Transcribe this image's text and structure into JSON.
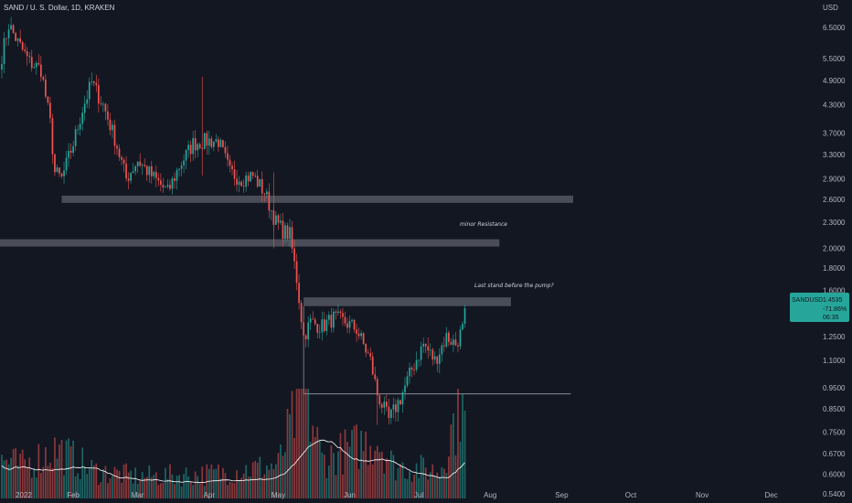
{
  "header": {
    "title": "SAND / U. S. Dollar, 1D, KRAKEN"
  },
  "price_axis": {
    "currency": "USD"
  },
  "price_badge": {
    "symbol": "SANDUSD",
    "price": "1.4535",
    "change": "-71.86%",
    "countdown": "06:35"
  },
  "annotations": {
    "minor_resistance": "minor Resistance",
    "last_stand": "Last stand before the pump?"
  },
  "colors": {
    "up": "#26a69a",
    "down": "#ef5350",
    "zone": "#5d606b",
    "background": "#131722",
    "ma_line": "#ffffff",
    "badge": "#26a69a"
  },
  "chart_data": {
    "type": "candlestick",
    "title": "SAND / U. S. Dollar, 1D, KRAKEN",
    "y_scale": "log",
    "y_ticks": [
      "6.5000",
      "5.5000",
      "4.9000",
      "4.3000",
      "3.7000",
      "3.3000",
      "2.9000",
      "2.6000",
      "2.3000",
      "2.0000",
      "1.8000",
      "1.6000",
      "1.2500",
      "1.1000",
      "0.9500",
      "0.8500",
      "0.7500",
      "0.6700",
      "0.6000",
      "0.5400"
    ],
    "x_ticks": [
      "2022",
      "Feb",
      "Mar",
      "Apr",
      "May",
      "Jun",
      "Jul",
      "Aug",
      "Sep",
      "Oct",
      "Nov",
      "Dec"
    ],
    "ohlc_anchors": [
      {
        "date": "2022-01-01",
        "close": 5.6
      },
      {
        "date": "2022-01-04",
        "close": 6.6
      },
      {
        "date": "2022-01-08",
        "close": 6.0
      },
      {
        "date": "2022-01-13",
        "close": 5.4
      },
      {
        "date": "2022-01-18",
        "close": 5.2
      },
      {
        "date": "2022-01-22",
        "close": 3.9
      },
      {
        "date": "2022-01-24",
        "close": 3.0
      },
      {
        "date": "2022-01-27",
        "close": 2.9
      },
      {
        "date": "2022-02-01",
        "close": 3.5
      },
      {
        "date": "2022-02-05",
        "close": 4.2
      },
      {
        "date": "2022-02-09",
        "close": 4.85
      },
      {
        "date": "2022-02-14",
        "close": 4.3
      },
      {
        "date": "2022-02-19",
        "close": 3.6
      },
      {
        "date": "2022-02-24",
        "close": 2.9
      },
      {
        "date": "2022-03-01",
        "close": 3.2
      },
      {
        "date": "2022-03-07",
        "close": 2.95
      },
      {
        "date": "2022-03-14",
        "close": 2.7
      },
      {
        "date": "2022-03-19",
        "close": 3.1
      },
      {
        "date": "2022-03-25",
        "close": 3.5
      },
      {
        "date": "2022-03-31",
        "close": 3.55
      },
      {
        "date": "2022-04-05",
        "close": 3.55
      },
      {
        "date": "2022-04-10",
        "close": 3.0
      },
      {
        "date": "2022-04-15",
        "close": 2.9
      },
      {
        "date": "2022-04-20",
        "close": 2.95
      },
      {
        "date": "2022-04-25",
        "close": 2.7
      },
      {
        "date": "2022-04-30",
        "close": 2.3
      },
      {
        "date": "2022-05-03",
        "close": 2.2
      },
      {
        "date": "2022-05-06",
        "close": 2.15
      },
      {
        "date": "2022-05-09",
        "close": 1.7
      },
      {
        "date": "2022-05-12",
        "close": 1.25
      },
      {
        "date": "2022-05-15",
        "close": 1.35
      },
      {
        "date": "2022-05-20",
        "close": 1.32
      },
      {
        "date": "2022-05-25",
        "close": 1.38
      },
      {
        "date": "2022-05-30",
        "close": 1.35
      },
      {
        "date": "2022-06-04",
        "close": 1.3
      },
      {
        "date": "2022-06-10",
        "close": 1.1
      },
      {
        "date": "2022-06-13",
        "close": 0.92
      },
      {
        "date": "2022-06-18",
        "close": 0.8
      },
      {
        "date": "2022-06-23",
        "close": 0.9
      },
      {
        "date": "2022-06-28",
        "close": 1.05
      },
      {
        "date": "2022-07-03",
        "close": 1.2
      },
      {
        "date": "2022-07-08",
        "close": 1.1
      },
      {
        "date": "2022-07-13",
        "close": 1.25
      },
      {
        "date": "2022-07-17",
        "close": 1.2
      },
      {
        "date": "2022-07-20",
        "close": 1.3
      },
      {
        "date": "2022-07-21",
        "close": 1.4535
      }
    ],
    "zones": [
      {
        "name": "resistance-zone-upper",
        "from": "2022-01-27",
        "to": "2022-09-06",
        "low": 2.55,
        "high": 2.65
      },
      {
        "name": "minor-resistance-zone",
        "from": "2021-12-31",
        "to": "2022-08-05",
        "low": 2.02,
        "high": 2.1
      },
      {
        "name": "last-stand-zone",
        "from": "2022-05-12",
        "to": "2022-08-10",
        "low": 1.47,
        "high": 1.54
      }
    ],
    "support_line": {
      "from": "2022-05-12",
      "to": "2022-09-05",
      "price": 0.92
    },
    "volume_anchors": [
      {
        "date": "2022-01-01",
        "value": 0.35
      },
      {
        "date": "2022-01-10",
        "value": 0.3
      },
      {
        "date": "2022-01-25",
        "value": 0.45
      },
      {
        "date": "2022-02-10",
        "value": 0.25
      },
      {
        "date": "2022-03-01",
        "value": 0.2
      },
      {
        "date": "2022-04-01",
        "value": 0.22
      },
      {
        "date": "2022-05-01",
        "value": 0.3
      },
      {
        "date": "2022-05-12",
        "value": 1.0
      },
      {
        "date": "2022-05-20",
        "value": 0.35
      },
      {
        "date": "2022-06-13",
        "value": 0.55
      },
      {
        "date": "2022-06-20",
        "value": 0.3
      },
      {
        "date": "2022-07-10",
        "value": 0.25
      },
      {
        "date": "2022-07-20",
        "value": 0.95
      },
      {
        "date": "2022-07-21",
        "value": 0.9
      }
    ]
  }
}
